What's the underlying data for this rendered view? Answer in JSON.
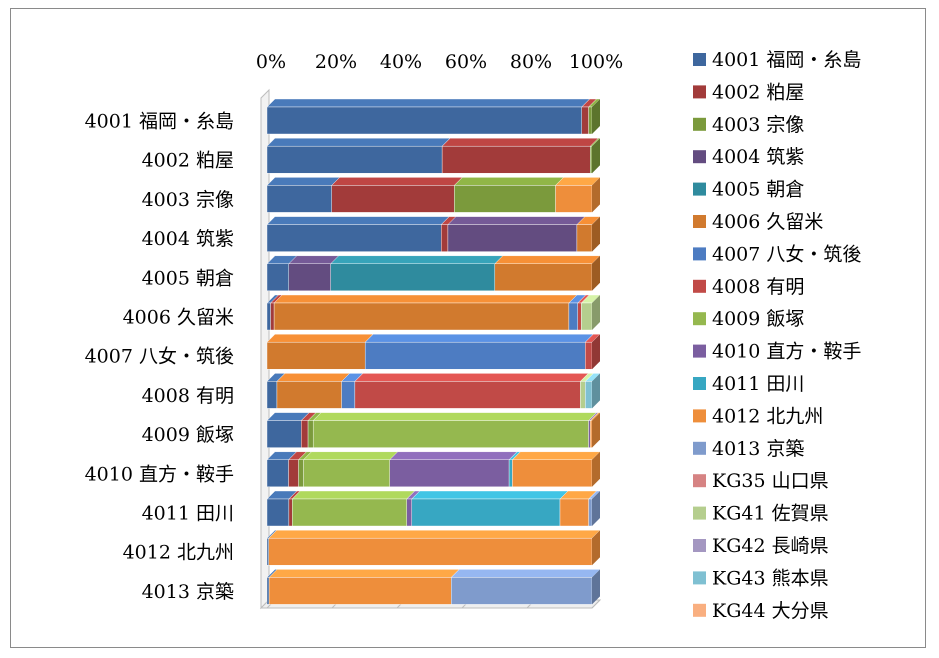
{
  "chart_data": {
    "type": "bar",
    "orientation": "horizontal",
    "stacked": "percent",
    "style": "3d",
    "xlim": [
      0,
      100
    ],
    "x_ticks": [
      "0%",
      "20%",
      "40%",
      "60%",
      "80%",
      "100%"
    ],
    "legend_position": "right",
    "grid": false,
    "categories": [
      "4001 福岡・糸島",
      "4002 粕屋",
      "4003 宗像",
      "4004 筑紫",
      "4005 朝倉",
      "4006 久留米",
      "4007 八女・筑後",
      "4008 有明",
      "4009 飯塚",
      "4010 直方・鞍手",
      "4011 田川",
      "4012 北九州",
      "4013 京築"
    ],
    "series": [
      {
        "name": "4001 福岡・糸島",
        "color": "#3E679E",
        "values": [
          92,
          52,
          19.5,
          52,
          6.5,
          1,
          0,
          3,
          10,
          6.5,
          6.5,
          0.5,
          0.5
        ]
      },
      {
        "name": "4002 粕屋",
        "color": "#A23B3A",
        "values": [
          2,
          44,
          37,
          2,
          0,
          1,
          0,
          0,
          2,
          3,
          1,
          0,
          0
        ]
      },
      {
        "name": "4003 宗像",
        "color": "#7B9A3C",
        "values": [
          1,
          0.5,
          30.5,
          0,
          0,
          0,
          0,
          0,
          1.5,
          1.5,
          0,
          0,
          0
        ]
      },
      {
        "name": "4004 筑紫",
        "color": "#634C80",
        "values": [
          0,
          0,
          0,
          38.5,
          12.5,
          0,
          0,
          0,
          0,
          0,
          0,
          0,
          0
        ]
      },
      {
        "name": "4005 朝倉",
        "color": "#2F8B9E",
        "values": [
          0,
          0,
          0,
          0,
          49,
          0,
          0,
          0,
          0,
          0,
          0,
          0,
          0
        ]
      },
      {
        "name": "4006 久留米",
        "color": "#D17A2E",
        "values": [
          0,
          0,
          0,
          4.5,
          29,
          83,
          29,
          19.5,
          0,
          0,
          0,
          0,
          0
        ]
      },
      {
        "name": "4007 八女・筑後",
        "color": "#4D7CC2",
        "values": [
          0,
          0,
          0,
          0,
          0,
          2.5,
          65,
          4,
          0,
          0,
          0,
          0,
          0
        ]
      },
      {
        "name": "4008 有明",
        "color": "#C14A47",
        "values": [
          0,
          0,
          0,
          0,
          0,
          1,
          2,
          68,
          0,
          0,
          0,
          0,
          0
        ]
      },
      {
        "name": "4009 飯塚",
        "color": "#95B84F",
        "values": [
          0,
          0,
          0,
          0,
          0,
          0,
          0,
          0,
          80.5,
          26,
          34,
          0,
          0
        ]
      },
      {
        "name": "4010 直方・鞍手",
        "color": "#7B5EA0",
        "values": [
          0,
          0,
          0,
          0,
          0,
          0,
          0,
          0,
          0.5,
          36,
          1.5,
          0,
          0
        ]
      },
      {
        "name": "4011 田川",
        "color": "#37A7C2",
        "values": [
          0,
          0,
          0,
          0,
          0,
          0,
          0,
          0,
          0,
          1,
          44,
          0,
          0
        ]
      },
      {
        "name": "4012 北九州",
        "color": "#EE8E3B",
        "values": [
          0,
          0,
          11,
          0,
          0,
          0,
          0,
          0,
          0.5,
          24,
          8.5,
          97,
          44
        ]
      },
      {
        "name": "4013 京築",
        "color": "#7F9BCC",
        "values": [
          0,
          0,
          0,
          0,
          0,
          0,
          0,
          0,
          0,
          0,
          1,
          0,
          34
        ]
      },
      {
        "name": "KG35 山口県",
        "color": "#D68383",
        "values": [
          0,
          0,
          0,
          0,
          0,
          0,
          0,
          0,
          0,
          0,
          0,
          0,
          0
        ]
      },
      {
        "name": "KG41 佐賀県",
        "color": "#B5CE8E",
        "values": [
          0,
          0,
          0,
          0,
          0,
          3,
          0,
          1.5,
          0,
          0,
          0,
          0,
          0
        ]
      },
      {
        "name": "KG42 長崎県",
        "color": "#A497C1",
        "values": [
          0,
          0,
          0,
          0,
          0,
          0,
          0,
          0,
          0,
          0,
          0,
          0,
          0
        ]
      },
      {
        "name": "KG43 熊本県",
        "color": "#7FC0D2",
        "values": [
          0,
          0,
          0,
          0,
          0,
          0,
          0,
          2,
          0,
          0,
          0,
          0,
          0
        ]
      },
      {
        "name": "KG44 大分県",
        "color": "#F9AF80",
        "values": [
          0,
          0,
          0,
          0,
          0,
          0,
          0,
          0,
          0,
          0,
          0,
          0,
          0
        ]
      }
    ]
  }
}
